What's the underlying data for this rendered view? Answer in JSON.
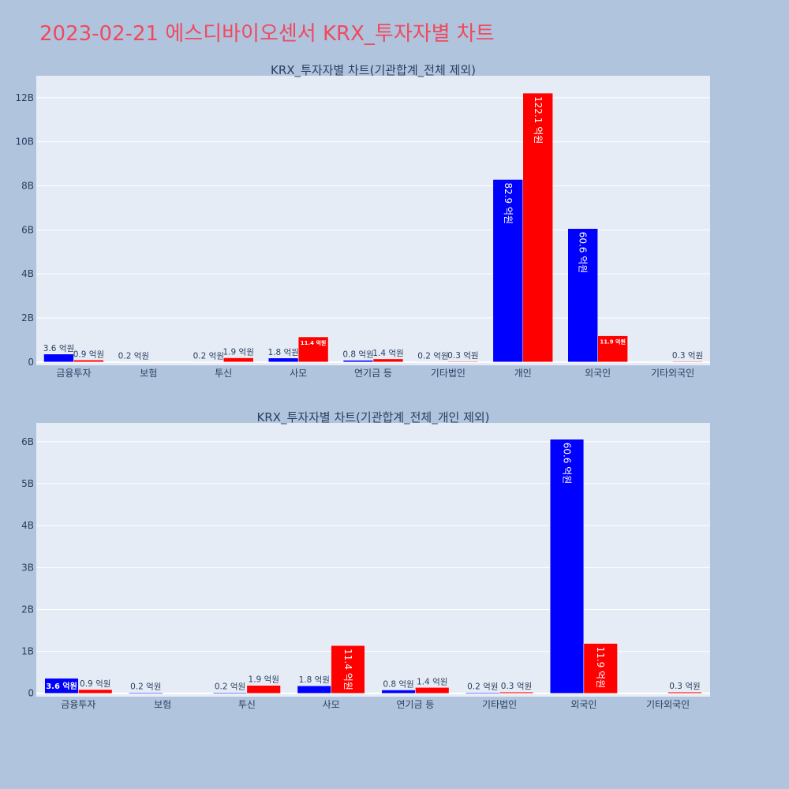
{
  "title": "2023-02-21 에스디바이오센서 KRX_투자자별 차트",
  "colors": {
    "page_bg": "#b0c4de",
    "plot_bg": "#e5ecf6",
    "grid": "#ffffff",
    "buy": "#0000ff",
    "sell": "#ff0000",
    "title": "#ef4a5e",
    "text": "#2a3f5f"
  },
  "chart_data": [
    {
      "type": "bar",
      "title": "KRX_투자자별 차트(기관합계_전체 제외)",
      "categories": [
        "금융투자",
        "보험",
        "투신",
        "사모",
        "연기금 등",
        "기타법인",
        "개인",
        "외국인",
        "기타외국인"
      ],
      "ylim": [
        -150000000,
        13000000000
      ],
      "yticks": [
        0,
        2000000000,
        4000000000,
        6000000000,
        8000000000,
        10000000000,
        12000000000
      ],
      "ytick_labels": [
        "0",
        "2B",
        "4B",
        "6B",
        "8B",
        "10B",
        "12B"
      ],
      "grid": true,
      "series": [
        {
          "color": "#0000ff",
          "values": [
            360000000,
            20000000,
            20000000,
            180000000,
            80000000,
            20000000,
            8290000000,
            6060000000,
            0
          ],
          "labels": [
            "3.6 억원",
            "0.2 억원",
            "0.2 억원",
            "1.8 억원",
            "0.8 억원",
            "0.2 억원",
            "82.9 억원",
            "60.6 억원",
            ""
          ],
          "label_pos": [
            "outside",
            "outside",
            "outside",
            "outside",
            "outside",
            "outside",
            "inside",
            "inside",
            "none"
          ]
        },
        {
          "color": "#ff0000",
          "values": [
            90000000,
            0,
            190000000,
            1140000000,
            140000000,
            30000000,
            12210000000,
            1190000000,
            30000000
          ],
          "labels": [
            "0.9 억원",
            "",
            "1.9 억원",
            "11.4 억원",
            "1.4 억원",
            "0.3 억원",
            "122.1 억원",
            "11.9 억원",
            "0.3 억원"
          ],
          "label_pos": [
            "outside",
            "none",
            "outside",
            "inside-small",
            "outside",
            "outside",
            "inside",
            "inside-small",
            "outside"
          ]
        }
      ]
    },
    {
      "type": "bar",
      "title": "KRX_투자자별 차트(기관합계_전체_개인 제외)",
      "categories": [
        "금융투자",
        "보험",
        "투신",
        "사모",
        "연기금 등",
        "기타법인",
        "외국인",
        "기타외국인"
      ],
      "ylim": [
        -80000000,
        6450000000
      ],
      "yticks": [
        0,
        1000000000,
        2000000000,
        3000000000,
        4000000000,
        5000000000,
        6000000000
      ],
      "ytick_labels": [
        "0",
        "1B",
        "2B",
        "3B",
        "4B",
        "5B",
        "6B"
      ],
      "grid": true,
      "series": [
        {
          "color": "#0000ff",
          "values": [
            360000000,
            20000000,
            20000000,
            180000000,
            80000000,
            20000000,
            6060000000,
            0
          ],
          "labels": [
            "3.6 억원",
            "0.2 억원",
            "0.2 억원",
            "1.8 억원",
            "0.8 억원",
            "0.2 억원",
            "60.6 억원",
            ""
          ],
          "label_pos": [
            "inside-bold",
            "outside",
            "outside",
            "outside",
            "outside",
            "outside",
            "inside",
            "none"
          ]
        },
        {
          "color": "#ff0000",
          "values": [
            90000000,
            0,
            190000000,
            1140000000,
            140000000,
            30000000,
            1190000000,
            30000000
          ],
          "labels": [
            "0.9 억원",
            "",
            "1.9 억원",
            "11.4 억원",
            "1.4 억원",
            "0.3 억원",
            "11.9 억원",
            "0.3 억원"
          ],
          "label_pos": [
            "outside",
            "none",
            "outside",
            "inside",
            "outside",
            "outside",
            "inside",
            "outside"
          ]
        }
      ]
    }
  ]
}
